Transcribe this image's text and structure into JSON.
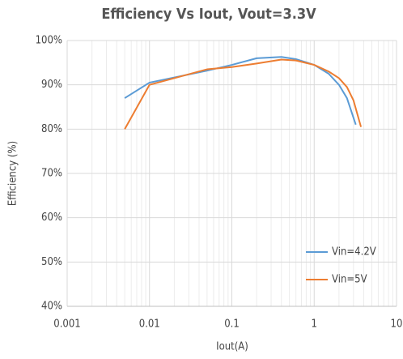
{
  "chart_data": {
    "type": "line",
    "title": "Efficiency Vs Iout, Vout=3.3V",
    "x_label": "Iout(A)",
    "y_label": "Efficiency (%)",
    "x_scale": "log",
    "grid": true,
    "legend_position": "lower right",
    "xlim": [
      0.001,
      10
    ],
    "xticks": [
      0.001,
      0.01,
      0.1,
      1,
      10
    ],
    "ylim": [
      40,
      100
    ],
    "yticks": [
      {
        "value": 40,
        "label": "40%"
      },
      {
        "value": 50,
        "label": "50%"
      },
      {
        "value": 60,
        "label": "60%"
      },
      {
        "value": 70,
        "label": "70%"
      },
      {
        "value": 80,
        "label": "80%"
      },
      {
        "value": 90,
        "label": "90%"
      },
      {
        "value": 100,
        "label": "100%"
      }
    ],
    "series": [
      {
        "name": "Vin=4.2V",
        "color": "#5b9bd5",
        "x": [
          0.005,
          0.01,
          0.05,
          0.1,
          0.2,
          0.4,
          0.6,
          1,
          1.5,
          2,
          2.5,
          3.2
        ],
        "values": [
          87,
          90.5,
          93.2,
          94.5,
          96,
          96.3,
          95.8,
          94.5,
          92.5,
          90,
          87,
          81
        ]
      },
      {
        "name": "Vin=5V",
        "color": "#ed7d31",
        "x": [
          0.005,
          0.01,
          0.05,
          0.1,
          0.2,
          0.4,
          0.6,
          1,
          1.5,
          2,
          2.5,
          3,
          3.7
        ],
        "values": [
          80,
          90,
          93.5,
          94,
          94.8,
          95.7,
          95.5,
          94.5,
          93,
          91.5,
          89.5,
          86.5,
          80.5
        ]
      }
    ]
  }
}
